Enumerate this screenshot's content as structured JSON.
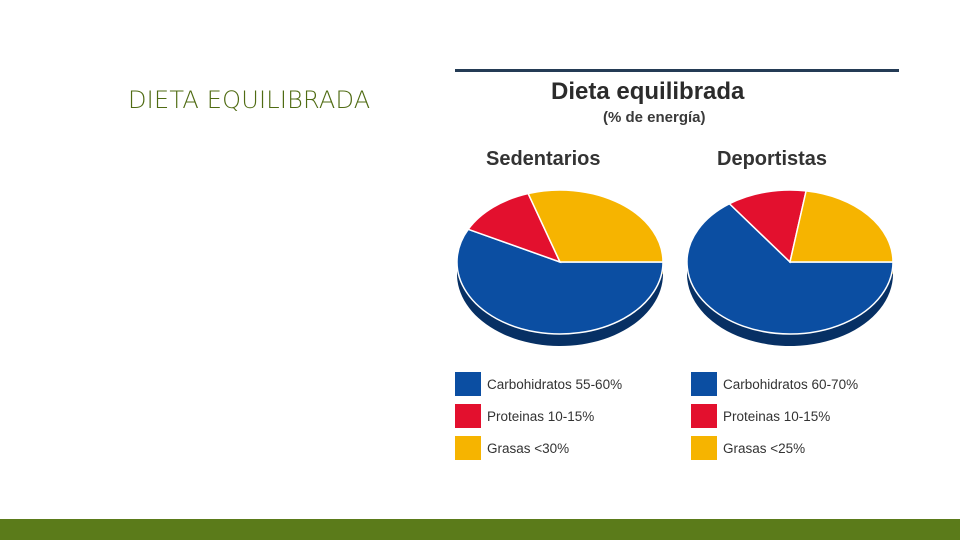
{
  "slide": {
    "title": "DIETA EQUILIBRADA",
    "accent_color": "#5b7b1a",
    "title_color": "#4f6b12"
  },
  "chart_data": {
    "type": "pie",
    "title": "Dieta equilibrada",
    "subtitle": "(% de energía)",
    "pies": [
      {
        "label": "Sedentarios",
        "slices": [
          {
            "name": "Carbohidratos",
            "range_label": "55-60%",
            "value": 57.5,
            "color": "#0b4ea2"
          },
          {
            "name": "Proteinas",
            "range_label": "10-15%",
            "value": 12.5,
            "color": "#e3102e"
          },
          {
            "name": "Grasas",
            "range_label": "<30%",
            "value": 30,
            "color": "#f6b400"
          }
        ]
      },
      {
        "label": "Deportistas",
        "slices": [
          {
            "name": "Carbohidratos",
            "range_label": "60-70%",
            "value": 65,
            "color": "#0b4ea2"
          },
          {
            "name": "Proteinas",
            "range_label": "10-15%",
            "value": 12.5,
            "color": "#e3102e"
          },
          {
            "name": "Grasas",
            "range_label": "<25%",
            "value": 22.5,
            "color": "#f6b400"
          }
        ]
      }
    ],
    "legends": [
      [
        "Carbohidratos 55-60%",
        "Proteinas 10-15%",
        "Grasas <30%"
      ],
      [
        "Carbohidratos 60-70%",
        "Proteinas 10-15%",
        "Grasas <25%"
      ]
    ]
  }
}
